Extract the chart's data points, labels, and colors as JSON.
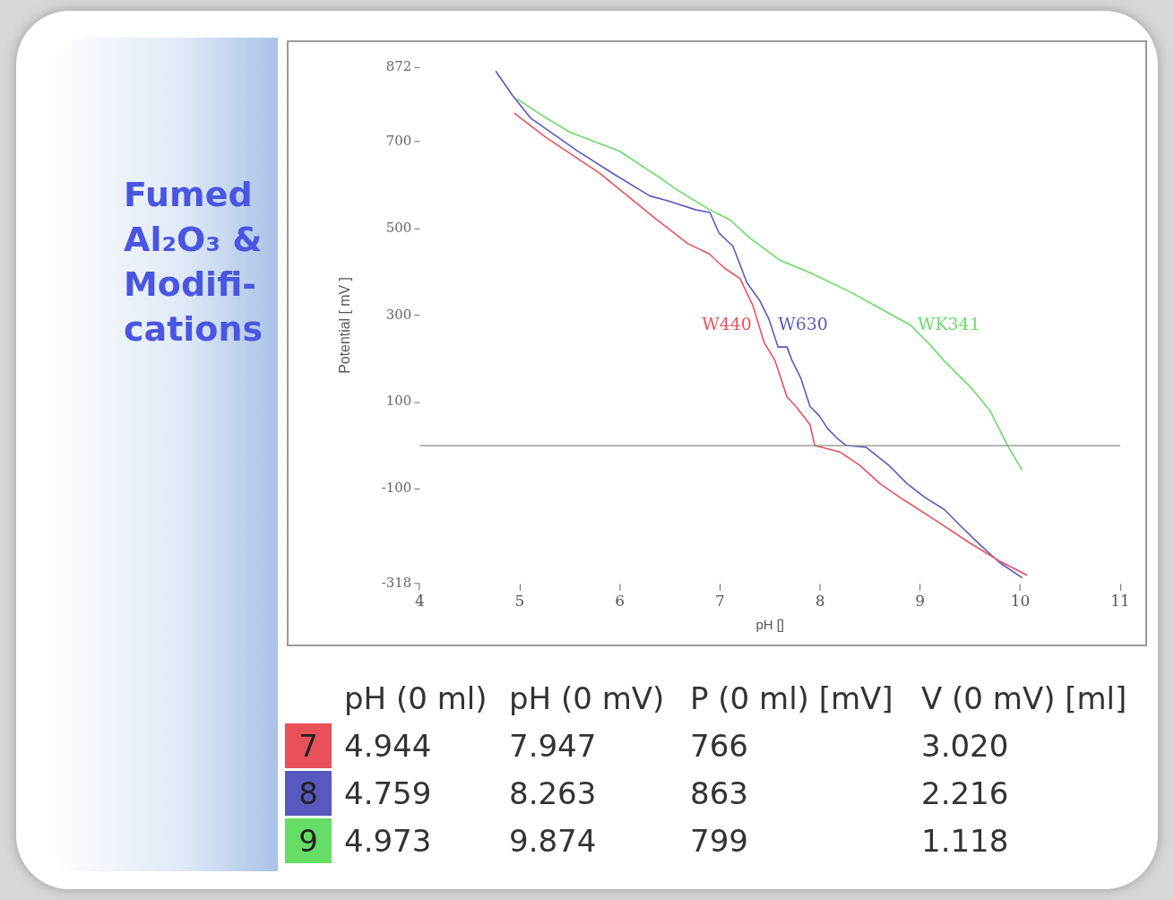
{
  "chart_data": {
    "type": "line",
    "title": "Fumed Al₂O₃ & Modifi-cations",
    "xlabel": "pH []",
    "ylabel": "Potential [ mV ]",
    "xlim": [
      4,
      11
    ],
    "xticks": [
      4,
      5,
      6,
      7,
      8,
      9,
      10,
      11
    ],
    "ylim": [
      -318,
      872
    ],
    "yticks": [
      -318,
      -100,
      100,
      300,
      500,
      700,
      872
    ],
    "grid": false,
    "legend": false,
    "marker": "none",
    "line_style": "solid",
    "ref_lines": [
      {
        "axis": "y",
        "value": 0,
        "color": "#8a8a8a"
      }
    ],
    "series": [
      {
        "name": "W440",
        "color": "#e8505a",
        "x": [
          4.944,
          5.25,
          5.8,
          6.35,
          6.68,
          6.89,
          7.05,
          7.2,
          7.33,
          7.44,
          7.55,
          7.67,
          7.76,
          7.9,
          7.947,
          8.2,
          8.4,
          8.6,
          8.8,
          9.16,
          9.5,
          9.8,
          10.07
        ],
        "values": [
          766,
          712,
          627,
          524,
          465,
          442,
          408,
          385,
          322,
          238,
          196,
          112,
          90,
          48,
          0,
          -15,
          -46,
          -88,
          -120,
          -173,
          -225,
          -267,
          -299
        ]
      },
      {
        "name": "W630",
        "color": "#5858c0",
        "x": [
          4.759,
          4.93,
          5.11,
          5.57,
          5.93,
          6.3,
          6.48,
          6.76,
          6.9,
          6.99,
          7.13,
          7.27,
          7.4,
          7.49,
          7.58,
          7.67,
          7.72,
          7.81,
          7.9,
          7.99,
          8.08,
          8.17,
          8.263,
          8.46,
          8.69,
          8.87,
          9.05,
          9.24,
          9.42,
          9.6,
          9.79,
          10.02
        ],
        "values": [
          863,
          806,
          754,
          680,
          627,
          575,
          564,
          543,
          537,
          490,
          459,
          375,
          333,
          291,
          227,
          227,
          196,
          154,
          90,
          69,
          38,
          17,
          0,
          -4,
          -46,
          -88,
          -120,
          -147,
          -189,
          -229,
          -269,
          -305
        ]
      },
      {
        "name": "WK341",
        "color": "#66dd66",
        "x": [
          4.973,
          5.2,
          5.5,
          6.0,
          6.4,
          6.6,
          6.9,
          7.1,
          7.3,
          7.6,
          7.9,
          8.3,
          8.6,
          8.9,
          9.1,
          9.24,
          9.51,
          9.7,
          9.874,
          10.02
        ],
        "values": [
          799,
          764,
          722,
          678,
          617,
          585,
          543,
          520,
          478,
          427,
          398,
          354,
          316,
          278,
          232,
          195,
          133,
          80,
          0,
          -57
        ]
      }
    ],
    "annotations": [
      "pH (0 ml)",
      "pH (0 mV)",
      "P (0 ml) [mV]",
      "V (0 mV) [ml]",
      "7",
      "4.944",
      "7.947",
      "766",
      "3.020",
      "8",
      "4.759",
      "8.263",
      "863",
      "2.216",
      "9",
      "4.973",
      "9.874",
      "799",
      "1.118"
    ]
  }
}
